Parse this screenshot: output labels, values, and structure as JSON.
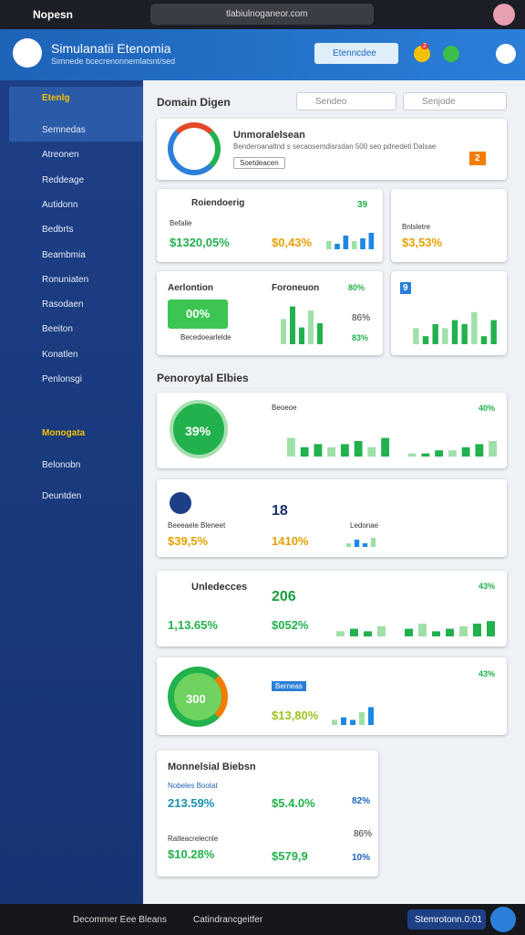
{
  "browser": {
    "tab": "Nopesn",
    "url": "tlabiulnoganeor.com"
  },
  "app": {
    "title": "Simulanatii Etenomia",
    "subtitle": "Simnede bcecrenonnemlatsnt/sed",
    "button": "Etenncdee",
    "badge": "2"
  },
  "sidebar": {
    "items": [
      "Etenlg",
      "Semnedas",
      "Atreonen",
      "Reddeage",
      "Autidonn",
      "Bedbrts",
      "Beambmia",
      "Ronuniaten",
      "Rasodaen",
      "Beeiton",
      "Konatlen",
      "Penlonsgi"
    ],
    "section": "Monogata",
    "sub": [
      "Belonobn",
      "Deuntden"
    ]
  },
  "main": {
    "title": "Domain Digen",
    "search": [
      "Sendeo",
      "Senjode"
    ],
    "section": "Penoroytal Elbies",
    "c1": {
      "title": "Unmoralelsean",
      "text": "Benderoanaltnd s secaosemdisrsdan 500 seo pdnedeti Dalsae",
      "chip": "Soetdeacen",
      "badge": "2"
    },
    "c2": {
      "title": "Roiendoerig",
      "label": "Befalie",
      "v1": "$1320,05%",
      "v2": "$0,43%",
      "top": "39",
      "bars": [
        3,
        2,
        5,
        3,
        4,
        6
      ],
      "color": "#1e88e5"
    },
    "c3": {
      "title": "Bnlsletre",
      "v1": "$3,53%",
      "bars": []
    },
    "c4": {
      "title": "Aerlontion",
      "chip": "00%",
      "foot": "Becedoearlelde",
      "t2": "Foroneuon",
      "p1": "80%",
      "p2": "86%",
      "p3": "83%",
      "bars": [
        6,
        9,
        4,
        8,
        5
      ],
      "color": "#22b14c"
    },
    "c5": {
      "title": "9",
      "bars": [
        4,
        2,
        5,
        4,
        6,
        5,
        8,
        2,
        6
      ],
      "color": "#22b14c"
    },
    "c6": {
      "donut": "39%",
      "t": "Beoeoe",
      "p": "40%",
      "bars": [
        6,
        3,
        4,
        3,
        4,
        5,
        3,
        6,
        0,
        1,
        1,
        2,
        2,
        3,
        4,
        5
      ],
      "color": "#22b14c"
    },
    "c7": {
      "label": "Beeeaele Bleneet",
      "v1": "$39,5%",
      "t": "18",
      "v2": "1410%",
      "t2": "Ledonae",
      "bars": [
        2,
        4,
        2,
        5
      ],
      "color": "#1e88e5"
    },
    "c8": {
      "title": "Unledecces",
      "v1": "1,13.65%",
      "t": "206",
      "v2": "$052%",
      "p": "43%",
      "bars": [
        2,
        3,
        2,
        4,
        0,
        3,
        5,
        2,
        3,
        4,
        5,
        6
      ],
      "color": "#22b14c"
    },
    "c9": {
      "donut": "300",
      "v2": "$13,80%",
      "chip": "Berneas",
      "p": "43%",
      "bars": [
        2,
        3,
        2,
        5,
        7
      ],
      "color": "#1e88e5"
    },
    "c10": {
      "title": "Monnelsial Biebsn",
      "l1": "Nobeles Bootat",
      "v1": "213.59%",
      "v2": "$5.4.0%",
      "r1": "82%",
      "chip": "Ratleacrelecnle",
      "v3": "$10.28%",
      "v4": "$579,9",
      "r2": "10%",
      "r3": "86%"
    }
  },
  "footer": {
    "left": "Decommer Eee Bleans",
    "mid": "Catindrancgeitfer",
    "right": "Stemrotonn.0:01"
  }
}
